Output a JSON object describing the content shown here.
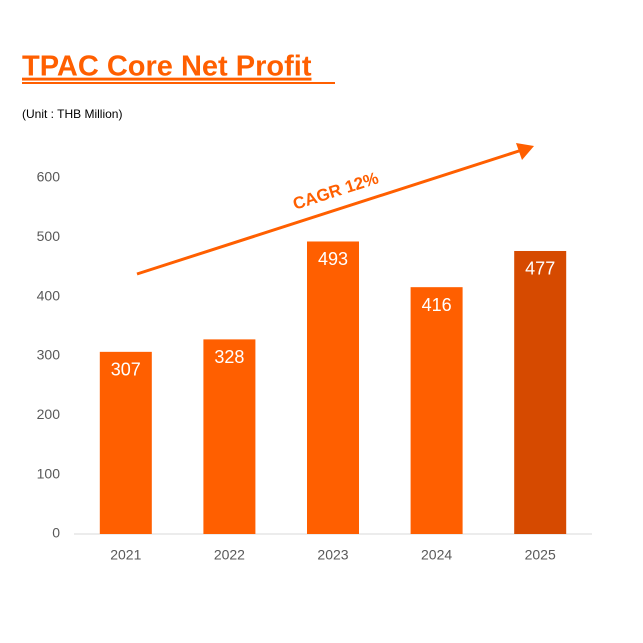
{
  "chart_data": {
    "type": "bar",
    "title": "TPAC Core Net Profit",
    "subtitle": "(Unit : THB Million)",
    "annotation": "CAGR 12%",
    "categories": [
      "2021",
      "2022",
      "2023",
      "2024",
      "2025"
    ],
    "values": [
      307,
      328,
      493,
      416,
      477
    ],
    "colors": [
      "#ff5f00",
      "#ff5f00",
      "#ff5f00",
      "#ff5f00",
      "#d64a00"
    ],
    "ylim": [
      0,
      600
    ],
    "yticks": [
      0,
      100,
      200,
      300,
      400,
      500,
      600
    ],
    "grid": false
  }
}
